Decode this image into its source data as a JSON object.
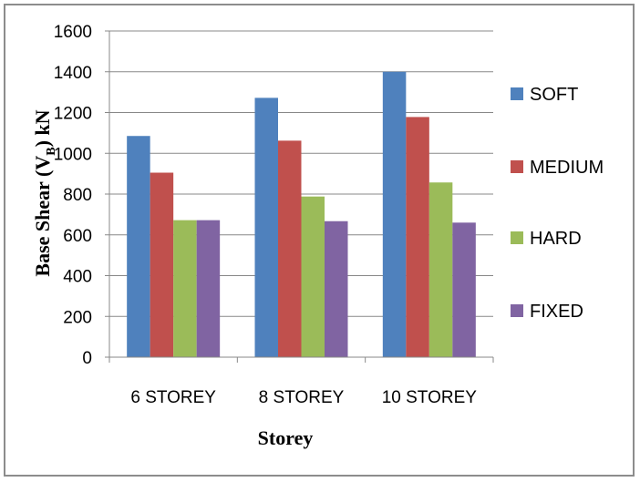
{
  "chart_data": {
    "type": "bar",
    "categories": [
      "6 STOREY",
      "8 STOREY",
      "10 STOREY"
    ],
    "series": [
      {
        "name": "SOFT",
        "color": "#4f81bd",
        "values": [
          1085,
          1272,
          1400
        ]
      },
      {
        "name": "MEDIUM",
        "color": "#c0504d",
        "values": [
          905,
          1062,
          1178
        ]
      },
      {
        "name": "HARD",
        "color": "#9bbb59",
        "values": [
          672,
          788,
          857
        ]
      },
      {
        "name": "FIXED",
        "color": "#8064a2",
        "values": [
          672,
          667,
          660
        ]
      }
    ],
    "xlabel": "Storey",
    "ylabel": {
      "main": "Base Shear (V",
      "subscript": "B",
      "suffix": ") kN"
    },
    "ylim": [
      0,
      1600
    ],
    "yticks": [
      0,
      200,
      400,
      600,
      800,
      1000,
      1200,
      1400,
      1600
    ],
    "grid": "horizontal",
    "legend_position": "right",
    "gridline_color": "#888888"
  }
}
